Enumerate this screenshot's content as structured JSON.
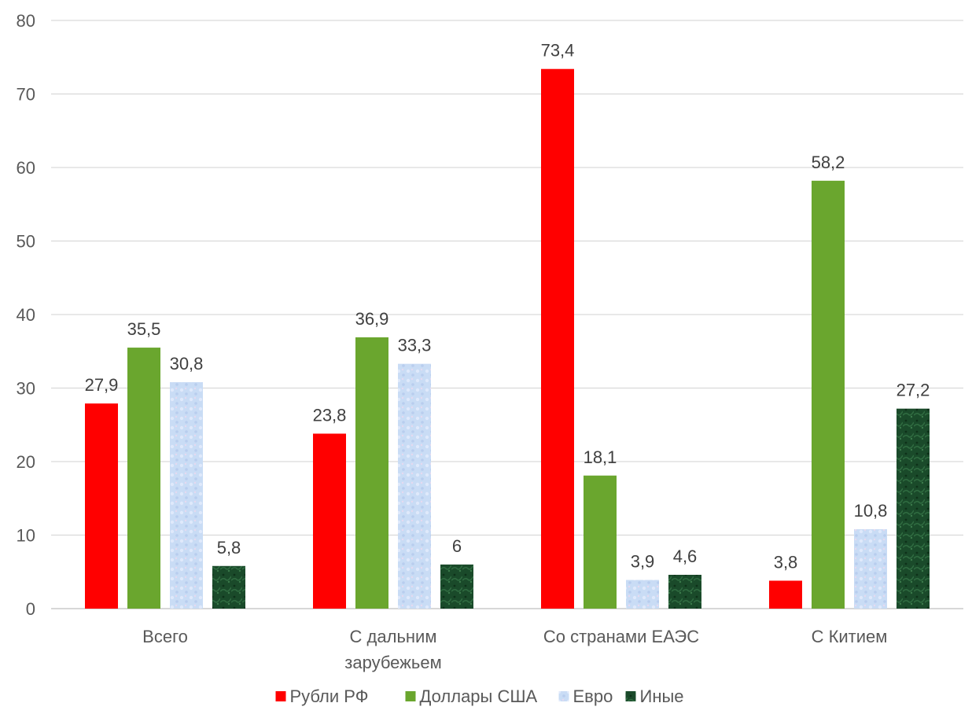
{
  "chart_data": {
    "type": "bar",
    "categories": [
      [
        "Всего"
      ],
      [
        "С дальним",
        "зарубежьем"
      ],
      [
        "Со странами ЕАЭС"
      ],
      [
        "С Китием"
      ]
    ],
    "series": [
      {
        "name": "Рубли РФ",
        "color": "#ff0000",
        "fill": "solid",
        "values": [
          27.9,
          23.8,
          73.4,
          3.8
        ],
        "labels": [
          "27,9",
          "23,8",
          "73,4",
          "3,8"
        ]
      },
      {
        "name": "Доллары США",
        "color": "#6aa62e",
        "fill": "solid",
        "values": [
          35.5,
          36.9,
          18.1,
          58.2
        ],
        "labels": [
          "35,5",
          "36,9",
          "18,1",
          "58,2"
        ]
      },
      {
        "name": "Евро",
        "color": "#c9dcf5",
        "fill": "light-texture",
        "values": [
          30.8,
          33.3,
          3.9,
          10.8
        ],
        "labels": [
          "30,8",
          "33,3",
          "3,9",
          "10,8"
        ]
      },
      {
        "name": "Иные",
        "color": "#1a4a2a",
        "fill": "dark-texture",
        "values": [
          5.8,
          6,
          4.6,
          27.2
        ],
        "labels": [
          "5,8",
          "6",
          "4,6",
          "27,2"
        ]
      }
    ],
    "y_ticks": [
      "0",
      "10",
      "20",
      "30",
      "40",
      "50",
      "60",
      "70",
      "80"
    ],
    "ylim": [
      0,
      80
    ],
    "grid": true,
    "legend_position": "bottom"
  }
}
